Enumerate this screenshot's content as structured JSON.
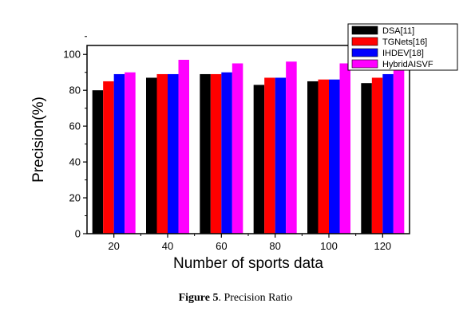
{
  "chart_data": {
    "type": "bar",
    "categories": [
      "20",
      "40",
      "60",
      "80",
      "100",
      "120"
    ],
    "series": [
      {
        "name": "DSA[11]",
        "color": "#000000",
        "values": [
          80,
          87,
          89,
          83,
          85,
          84
        ]
      },
      {
        "name": "TGNets[16]",
        "color": "#ff0000",
        "values": [
          85,
          89,
          89,
          87,
          86,
          87
        ]
      },
      {
        "name": "IHDEV[18]",
        "color": "#0000ff",
        "values": [
          89,
          89,
          90,
          87,
          86,
          89
        ]
      },
      {
        "name": "HybridAISVF",
        "color": "#ff00ff",
        "values": [
          90,
          97,
          95,
          96,
          95,
          98
        ]
      }
    ],
    "xlabel": "Number of sports data",
    "ylabel": "Precision(%)",
    "ylim": [
      0,
      105
    ],
    "yticks": [
      "0",
      "20",
      "40",
      "60",
      "80",
      "100"
    ],
    "grid": false,
    "legend_position": "top-right"
  },
  "caption": {
    "label": "Figure 5",
    "text": ". Precision Ratio"
  }
}
